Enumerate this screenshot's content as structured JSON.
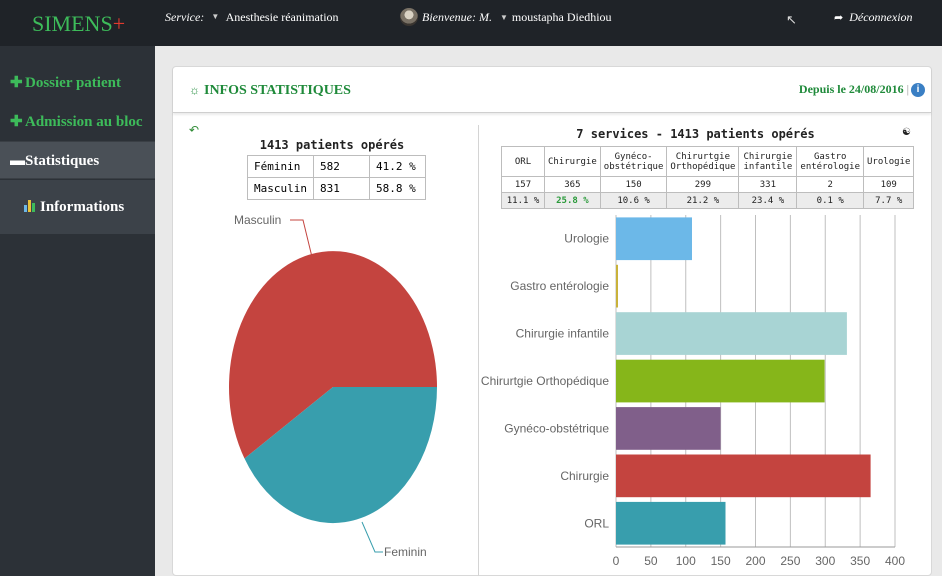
{
  "header": {
    "logo_text": "SIMENS",
    "logo_plus": "+",
    "service_label": "Service:",
    "service_value": "Anesthesie réanimation",
    "welcome_label": "Bienvenue: M.",
    "welcome_name": "moustapha Diedhiou",
    "logout_label": "Déconnexion"
  },
  "sidebar": {
    "items": [
      {
        "label": "Dossier patient"
      },
      {
        "label": "Admission au bloc"
      },
      {
        "label": "Statistiques"
      }
    ],
    "sub_item": {
      "label": "Informations"
    }
  },
  "panel": {
    "title": "INFOS STATISTIQUES",
    "since": "Depuis le 24/08/2016",
    "since_sep": "|"
  },
  "gender_stats": {
    "title": "1413 patients opérés",
    "rows": [
      {
        "label": "Féminin",
        "count": "582",
        "pct": "41.2 %"
      },
      {
        "label": "Masculin",
        "count": "831",
        "pct": "58.8 %"
      }
    ]
  },
  "service_stats": {
    "title": "7 services - 1413 patients opérés",
    "headers": [
      "ORL",
      "Chirurgie",
      "Gynéco-obstétrique",
      "Chirurtgie Orthopédique",
      "Chirurgie infantile",
      "Gastro entérologie",
      "Urologie"
    ],
    "counts": [
      "157",
      "365",
      "150",
      "299",
      "331",
      "2",
      "109"
    ],
    "pcts": [
      "11.1 %",
      "25.8 %",
      "10.6 %",
      "21.2 %",
      "23.4 %",
      "0.1 %",
      "7.7 %"
    ]
  },
  "chart_data": [
    {
      "type": "pie",
      "labels": [
        "Masculin",
        "Feminin"
      ],
      "values": [
        831,
        582
      ],
      "colors": [
        "#c4443f",
        "#389ead"
      ]
    },
    {
      "type": "bar",
      "orientation": "horizontal",
      "categories": [
        "Urologie",
        "Gastro entérologie",
        "Chirurgie infantile",
        "Chirurtgie Orthopédique",
        "Gynéco-obstétrique",
        "Chirurgie",
        "ORL"
      ],
      "values": [
        109,
        2,
        331,
        299,
        150,
        365,
        157
      ],
      "colors": [
        "#6cb8e8",
        "#c9b23a",
        "#a8d4d4",
        "#86b61a",
        "#805f8a",
        "#c4443f",
        "#389ead"
      ],
      "xlim": [
        0,
        400
      ],
      "xticks": [
        "0",
        "50",
        "100",
        "150",
        "200",
        "250",
        "300",
        "350",
        "400"
      ],
      "grid": true
    }
  ]
}
